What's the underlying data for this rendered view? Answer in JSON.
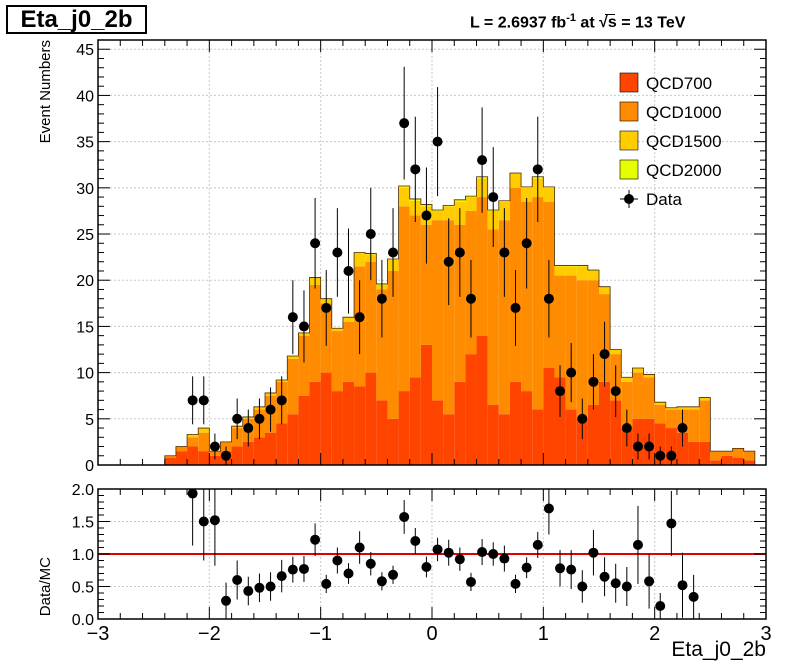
{
  "title": "Eta_j0_2b",
  "lumi_label": {
    "prefix": "L = 2.6937 fb",
    "exp": "-1",
    "mid": " at  ",
    "sqrt": "√s",
    "suffix": " = 13 TeV"
  },
  "chart_data": [
    {
      "type": "stacked-bar-with-points",
      "ylabel": "Event Numbers",
      "xlim": [
        -3,
        3
      ],
      "ylim": [
        0,
        46
      ],
      "y_ticks": [
        0,
        5,
        10,
        15,
        20,
        25,
        30,
        35,
        40,
        45
      ],
      "x_ticks": [
        -3,
        -2,
        -1,
        0,
        1,
        2,
        3
      ],
      "grid": true,
      "legend_position": "top-right",
      "bin_width": 0.1,
      "x_start": -2.4,
      "series": [
        {
          "name": "QCD700",
          "color": "#ff4400",
          "values": [
            0.8,
            1.5,
            2.0,
            1.5,
            1.0,
            1.5,
            2.0,
            2.5,
            3.0,
            3.5,
            4.5,
            5.5,
            7.5,
            9.0,
            10.0,
            8.0,
            9.0,
            8.5,
            10.0,
            7.0,
            5.0,
            8.0,
            9.5,
            13.0,
            7.0,
            5.5,
            9.0,
            12.0,
            14.0,
            6.5,
            5.5,
            9.0,
            8.0,
            6.0,
            10.5,
            9.5,
            6.0,
            5.0,
            6.5,
            9.0,
            7.0,
            4.0,
            5.0,
            5.0,
            4.5,
            4.0,
            3.5,
            2.5,
            2.5,
            0.5,
            1.0,
            0.8,
            0.5
          ]
        },
        {
          "name": "QCD1000",
          "color": "#ff8c00",
          "values": [
            0.2,
            0.5,
            1.0,
            2.0,
            0.5,
            1.0,
            2.0,
            2.5,
            3.0,
            4.0,
            4.5,
            6.0,
            6.5,
            10.5,
            7.5,
            6.5,
            6.5,
            13.0,
            12.0,
            12.0,
            16.0,
            20.0,
            17.5,
            13.0,
            19.5,
            21.0,
            17.0,
            15.5,
            15.0,
            19.0,
            21.0,
            21.0,
            20.5,
            23.0,
            18.0,
            11.0,
            14.5,
            15.0,
            13.5,
            9.5,
            5.0,
            5.0,
            5.0,
            4.5,
            2.0,
            2.0,
            2.5,
            3.5,
            4.5,
            1.0,
            0.5,
            1.0,
            1.0
          ]
        },
        {
          "name": "QCD1500",
          "color": "#ffcc00",
          "values": [
            0,
            0,
            0.3,
            0.5,
            0,
            0,
            0.2,
            0.2,
            0.3,
            0.3,
            0.2,
            0.3,
            0.3,
            0.8,
            0.5,
            0.3,
            0.5,
            1.5,
            0.8,
            0.5,
            1.2,
            2.0,
            1.6,
            2.0,
            1.0,
            1.5,
            2.5,
            1.5,
            2.0,
            2.0,
            2.0,
            1.5,
            1.5,
            2.0,
            1.5,
            1.0,
            1.0,
            1.5,
            1.0,
            0.8,
            0.5,
            0.5,
            0.5,
            0.3,
            0.3,
            0.2,
            0.3,
            0.3,
            0.3,
            0,
            0,
            0,
            0
          ]
        },
        {
          "name": "QCD2000",
          "color": "#e6ff00",
          "values": [
            0,
            0,
            0,
            0,
            0,
            0,
            0,
            0,
            0,
            0,
            0,
            0,
            0,
            0,
            0,
            0,
            0,
            0,
            0.1,
            0.1,
            0.1,
            0.2,
            0.2,
            0.2,
            0.1,
            0.1,
            0.2,
            0.1,
            0.2,
            0.1,
            0.1,
            0.1,
            0.1,
            0.2,
            0.1,
            0.1,
            0.1,
            0.1,
            0.1,
            0,
            0,
            0,
            0,
            0,
            0,
            0,
            0,
            0,
            0,
            0,
            0,
            0,
            0
          ]
        }
      ],
      "data_points": {
        "name": "Data",
        "x": [
          -2.15,
          -2.05,
          -1.95,
          -1.85,
          -1.75,
          -1.65,
          -1.55,
          -1.45,
          -1.35,
          -1.25,
          -1.15,
          -1.05,
          -0.95,
          -0.85,
          -0.75,
          -0.65,
          -0.55,
          -0.45,
          -0.35,
          -0.25,
          -0.15,
          -0.05,
          0.05,
          0.15,
          0.25,
          0.35,
          0.45,
          0.55,
          0.65,
          0.75,
          0.85,
          0.95,
          1.05,
          1.15,
          1.25,
          1.35,
          1.45,
          1.55,
          1.65,
          1.75,
          1.85,
          1.95,
          2.05,
          2.15,
          2.25,
          2.35
        ],
        "y": [
          7,
          7,
          2,
          1,
          5,
          4,
          5,
          6,
          7,
          16,
          15,
          24,
          17,
          23,
          21,
          16,
          25,
          18,
          23,
          37,
          32,
          27,
          35,
          22,
          23,
          18,
          33,
          29,
          23,
          17,
          24,
          32,
          18,
          8,
          10,
          5,
          9,
          12,
          8,
          4,
          2,
          2,
          1,
          1,
          4,
          0
        ],
        "err": [
          2.6,
          2.6,
          1.4,
          1.0,
          2.2,
          2.0,
          2.2,
          2.4,
          2.6,
          4.0,
          3.9,
          4.9,
          4.1,
          4.8,
          4.6,
          4.0,
          5.0,
          4.2,
          4.8,
          6.1,
          5.7,
          5.2,
          5.9,
          4.7,
          4.8,
          4.2,
          5.7,
          5.4,
          4.8,
          4.1,
          4.9,
          5.7,
          4.2,
          2.8,
          3.2,
          2.2,
          3.0,
          3.5,
          2.8,
          2.0,
          1.4,
          1.4,
          1.0,
          1.0,
          2.0,
          0
        ]
      }
    },
    {
      "type": "scatter-with-errors",
      "ylabel": "Data/MC",
      "xlabel": "Eta_j0_2b",
      "xlim": [
        -3,
        3
      ],
      "ylim": [
        0,
        2
      ],
      "y_ticks": [
        "0.0",
        "0.5",
        "1.0",
        "1.5",
        "2.0"
      ],
      "x_ticks": [
        "−3",
        "−2",
        "−1",
        "0",
        "1",
        "2",
        "3"
      ],
      "reference_line": {
        "y": 1.0,
        "color": "#e00000"
      },
      "grid": true,
      "points": {
        "x": [
          -2.15,
          -2.05,
          -1.95,
          -1.85,
          -1.75,
          -1.65,
          -1.55,
          -1.45,
          -1.35,
          -1.25,
          -1.15,
          -1.05,
          -0.95,
          -0.85,
          -0.75,
          -0.65,
          -0.55,
          -0.45,
          -0.35,
          -0.25,
          -0.15,
          -0.05,
          0.05,
          0.15,
          0.25,
          0.35,
          0.45,
          0.55,
          0.65,
          0.75,
          0.85,
          0.95,
          1.05,
          1.15,
          1.25,
          1.35,
          1.45,
          1.55,
          1.65,
          1.75,
          1.85,
          1.95,
          2.05,
          2.15,
          2.25,
          2.35
        ],
        "y": [
          1.93,
          1.5,
          1.52,
          0.28,
          0.6,
          0.43,
          0.48,
          0.5,
          0.66,
          0.76,
          0.77,
          1.22,
          0.54,
          0.9,
          0.7,
          1.1,
          0.85,
          0.58,
          0.68,
          1.57,
          1.2,
          0.8,
          1.07,
          1.02,
          0.92,
          0.57,
          1.03,
          1.0,
          0.93,
          0.54,
          0.79,
          1.14,
          1.7,
          0.78,
          0.76,
          0.5,
          1.02,
          0.65,
          0.55,
          0.5,
          1.14,
          0.58,
          0.2,
          1.47,
          0.52,
          0.34
        ],
        "err": [
          0.8,
          0.6,
          0.7,
          0.28,
          0.3,
          0.22,
          0.22,
          0.22,
          0.25,
          0.2,
          0.2,
          0.25,
          0.14,
          0.2,
          0.16,
          0.25,
          0.18,
          0.14,
          0.14,
          0.26,
          0.2,
          0.16,
          0.18,
          0.2,
          0.18,
          0.14,
          0.2,
          0.18,
          0.2,
          0.14,
          0.16,
          0.2,
          0.4,
          0.28,
          0.3,
          0.25,
          0.35,
          0.3,
          0.3,
          0.3,
          0.6,
          0.42,
          0.2,
          0.5,
          0.5,
          0.34
        ]
      }
    }
  ]
}
